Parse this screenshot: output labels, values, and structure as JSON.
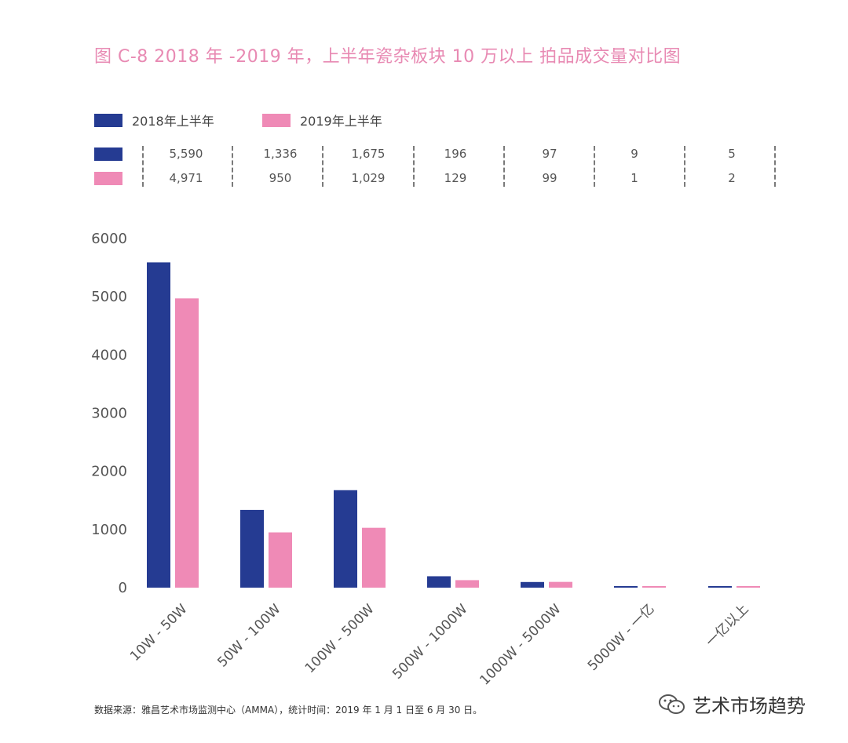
{
  "colors": {
    "series2018": "#253b92",
    "series2019": "#ef8ab6",
    "title": "#e88ab3",
    "axis": "#8a8a8a"
  },
  "chart_data": {
    "type": "bar",
    "title": "图 C-8 2018 年 -2019 年，上半年瓷杂板块 10 万以上 拍品成交量对比图",
    "xlabel": "",
    "ylabel": "",
    "ylim": [
      0,
      6000
    ],
    "yticks": [
      "6000",
      "5000",
      "4000",
      "3000",
      "2000",
      "1000",
      "0"
    ],
    "categories": [
      "10W - 50W",
      "50W - 100W",
      "100W - 500W",
      "500W - 1000W",
      "1000W - 5000W",
      "5000W - 一亿",
      "一亿以上"
    ],
    "series": [
      {
        "name": "2018年上半年",
        "values": [
          5590,
          1336,
          1675,
          196,
          97,
          9,
          5
        ],
        "labels": [
          "5,590",
          "1,336",
          "1,675",
          "196",
          "97",
          "9",
          "5"
        ]
      },
      {
        "name": "2019年上半年",
        "values": [
          4971,
          950,
          1029,
          129,
          99,
          1,
          2
        ],
        "labels": [
          "4,971",
          "950",
          "1,029",
          "129",
          "99",
          "1",
          "2"
        ]
      }
    ],
    "legend_position": "top-left",
    "grid": false
  },
  "footer": {
    "source": "数据来源：雅昌艺术市场监测中心（AMMA），统计时间：2019 年 1 月 1 日至 6 月 30 日。"
  },
  "brand": {
    "name": "艺术市场趋势",
    "icon": "wechat-icon"
  }
}
